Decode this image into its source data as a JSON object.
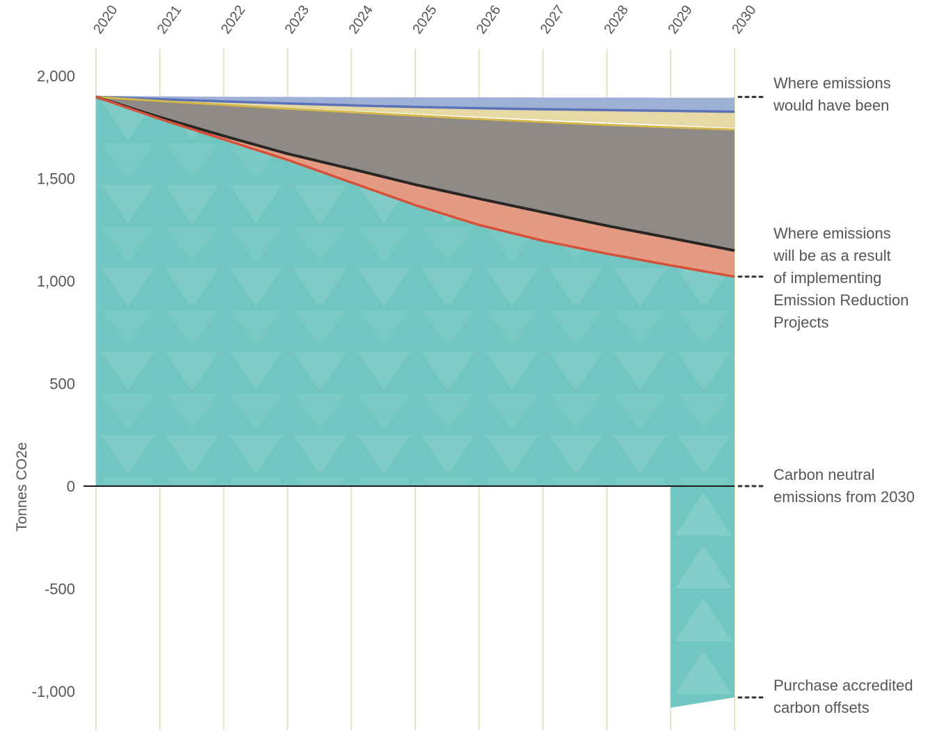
{
  "chart_data": {
    "type": "area",
    "ylabel": "Tonnes CO2e",
    "x": [
      "2020",
      "2021",
      "2022",
      "2023",
      "2024",
      "2025",
      "2026",
      "2027",
      "2028",
      "2029",
      "2030"
    ],
    "ylim": [
      -1100,
      2000
    ],
    "yticks": [
      2000,
      1500,
      1000,
      500,
      0,
      -500,
      -1000
    ],
    "ytick_labels": [
      "2,000",
      "1,500",
      "1,000",
      "500",
      "0",
      "-500",
      "-1,000"
    ],
    "grid": "vertical",
    "series": [
      {
        "key": "business_as_usual",
        "color": "#9fb0d6",
        "values": [
          1897,
          1895,
          1893,
          1892,
          1891,
          1890,
          1890,
          1889,
          1889,
          1888,
          1888
        ]
      },
      {
        "key": "blue_line",
        "color": "#5b72b8",
        "values": [
          1897,
          1886,
          1875,
          1865,
          1856,
          1848,
          1842,
          1837,
          1833,
          1829,
          1825
        ]
      },
      {
        "key": "cream_band",
        "color": "#e6d9a6",
        "values": [
          1897,
          1878,
          1862,
          1845,
          1830,
          1815,
          1800,
          1786,
          1772,
          1760,
          1746
        ]
      },
      {
        "key": "yellow_line",
        "color": "#d4b84a",
        "values": [
          1897,
          1877,
          1859,
          1840,
          1823,
          1806,
          1790,
          1775,
          1761,
          1749,
          1738
        ]
      },
      {
        "key": "grey_band",
        "color": "#8f8a85",
        "values": [
          1897,
          1877,
          1859,
          1840,
          1823,
          1806,
          1790,
          1775,
          1761,
          1749,
          1738
        ]
      },
      {
        "key": "dark_line",
        "color": "#2a2624",
        "values": [
          1897,
          1798,
          1707,
          1620,
          1546,
          1470,
          1401,
          1335,
          1269,
          1209,
          1148
        ]
      },
      {
        "key": "salmon_band",
        "color": "#e59a83",
        "values": [
          1897,
          1798,
          1707,
          1620,
          1546,
          1470,
          1401,
          1335,
          1269,
          1209,
          1148
        ]
      },
      {
        "key": "red_line",
        "color": "#d6513a",
        "values": [
          1897,
          1790,
          1690,
          1590,
          1480,
          1370,
          1273,
          1196,
          1133,
          1076,
          1021
        ]
      },
      {
        "key": "teal_area",
        "color": "#72c6c1",
        "values": [
          1897,
          1790,
          1690,
          1590,
          1480,
          1370,
          1273,
          1196,
          1133,
          1076,
          1021
        ]
      }
    ],
    "offsets": {
      "color": "#72c6c1",
      "x": [
        "2029",
        "2030"
      ],
      "values": [
        -1080,
        -1030
      ]
    },
    "annotations": [
      {
        "key": "bau",
        "lines": [
          "Where emissions",
          "would have been"
        ],
        "y": 1897
      },
      {
        "key": "result",
        "lines": [
          "Where emissions",
          "will be as a result",
          "of implementing",
          "Emission Reduction",
          "Projects"
        ],
        "y": 1021
      },
      {
        "key": "neutral",
        "lines": [
          "Carbon neutral",
          "emissions from 2030"
        ],
        "y": 0
      },
      {
        "key": "offsets",
        "lines": [
          "Purchase accredited",
          "carbon offsets"
        ],
        "y": -1030
      }
    ]
  }
}
